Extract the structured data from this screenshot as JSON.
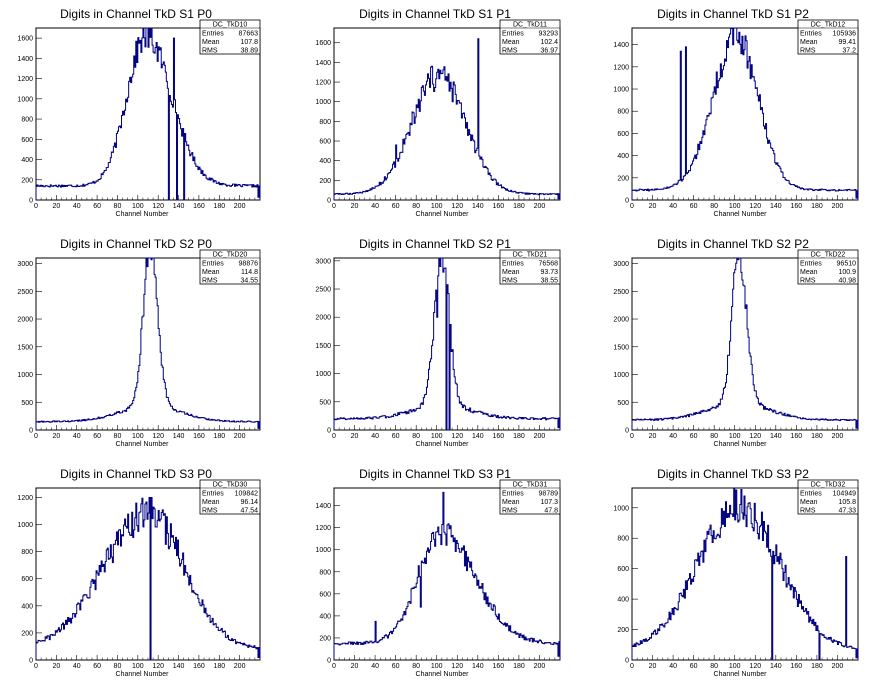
{
  "colors": {
    "line": "#000080",
    "frame": "#000000",
    "background": "#ffffff"
  },
  "chart_data": [
    {
      "type": "histogram",
      "title": "Digits in Channel TkD S1 P0",
      "xlabel": "Channel Number",
      "ylabel": "",
      "xlim": [
        0,
        220
      ],
      "ylim": [
        0,
        1700
      ],
      "xticks": [
        "0",
        "20",
        "40",
        "60",
        "80",
        "100",
        "120",
        "140",
        "160",
        "180",
        "200"
      ],
      "yticks": [
        "0",
        "200",
        "400",
        "600",
        "800",
        "1000",
        "1200",
        "1400",
        "1600"
      ],
      "stats": {
        "name": "DC_TkD10",
        "entries": "87663",
        "mean": "107.8",
        "rms": "38.89"
      },
      "profile": {
        "center": 108,
        "sigma": 22,
        "peak": 1480,
        "baseline": 140,
        "skew": 0.15,
        "noise": 0.09
      },
      "spikes": [
        [
          130,
          0
        ],
        [
          135,
          1600
        ],
        [
          138,
          0
        ],
        [
          145,
          0
        ]
      ]
    },
    {
      "type": "histogram",
      "title": "Digits in Channel TkD S1 P1",
      "xlabel": "Channel Number",
      "ylabel": "",
      "xlim": [
        0,
        220
      ],
      "ylim": [
        0,
        1750
      ],
      "xticks": [
        "0",
        "20",
        "40",
        "60",
        "80",
        "100",
        "120",
        "140",
        "160",
        "180",
        "200"
      ],
      "yticks": [
        "0",
        "200",
        "400",
        "600",
        "800",
        "1000",
        "1200",
        "1400",
        "1600"
      ],
      "stats": {
        "name": "DC_TkD11",
        "entries": "93293",
        "mean": "102.4",
        "rms": "36.97"
      },
      "profile": {
        "center": 102,
        "sigma": 26,
        "peak": 1200,
        "baseline": 60,
        "skew": 0.0,
        "noise": 0.12
      },
      "spikes": [
        [
          60,
          560
        ],
        [
          78,
          780
        ],
        [
          100,
          1300
        ],
        [
          140,
          1640
        ]
      ]
    },
    {
      "type": "histogram",
      "title": "Digits in Channel TkD S1 P2",
      "xlabel": "Channel Number",
      "ylabel": "",
      "xlim": [
        0,
        220
      ],
      "ylim": [
        0,
        1550
      ],
      "xticks": [
        "0",
        "20",
        "40",
        "60",
        "80",
        "100",
        "120",
        "140",
        "160",
        "180",
        "200"
      ],
      "yticks": [
        "0",
        "200",
        "400",
        "600",
        "800",
        "1000",
        "1200",
        "1400"
      ],
      "stats": {
        "name": "DC_TkD12",
        "entries": "105936",
        "mean": "99.41",
        "rms": "37.2"
      },
      "profile": {
        "center": 102,
        "sigma": 22,
        "peak": 1380,
        "baseline": 90,
        "skew": -0.05,
        "noise": 0.1
      },
      "spikes": [
        [
          47,
          1340
        ],
        [
          52,
          1380
        ],
        [
          102,
          1440
        ]
      ]
    },
    {
      "type": "histogram",
      "title": "Digits in Channel TkD S2 P0",
      "xlabel": "Channel Number",
      "ylabel": "",
      "xlim": [
        0,
        220
      ],
      "ylim": [
        0,
        3100
      ],
      "xticks": [
        "0",
        "20",
        "40",
        "60",
        "80",
        "100",
        "120",
        "140",
        "160",
        "180",
        "200"
      ],
      "yticks": [
        "0",
        "500",
        "1000",
        "1500",
        "2000",
        "2500",
        "3000"
      ],
      "stats": {
        "name": "DC_TkD20",
        "entries": "98876",
        "mean": "114.8",
        "rms": "34.55"
      },
      "profile": {
        "center": 112,
        "sigma": 7,
        "peak": 2900,
        "baseline": 150,
        "skew": 0.05,
        "noise": 0.08,
        "wing": 280,
        "wingsigma": 30
      },
      "spikes": []
    },
    {
      "type": "histogram",
      "title": "Digits in Channel TkD S2 P1",
      "xlabel": "Channel Number",
      "ylabel": "",
      "xlim": [
        0,
        220
      ],
      "ylim": [
        0,
        3050
      ],
      "xticks": [
        "0",
        "20",
        "40",
        "60",
        "80",
        "100",
        "120",
        "140",
        "160",
        "180",
        "200"
      ],
      "yticks": [
        "0",
        "500",
        "1000",
        "1500",
        "2000",
        "2500",
        "3000"
      ],
      "stats": {
        "name": "DC_TkD21",
        "entries": "76568",
        "mean": "93.73",
        "rms": "38.55"
      },
      "profile": {
        "center": 105,
        "sigma": 7,
        "peak": 2750,
        "baseline": 200,
        "skew": 0.0,
        "noise": 0.1,
        "wing": 250,
        "wingsigma": 28
      },
      "spikes": [
        [
          100,
          2000
        ],
        [
          103,
          2900
        ],
        [
          106,
          2800
        ],
        [
          109,
          0
        ],
        [
          112,
          0
        ]
      ]
    },
    {
      "type": "histogram",
      "title": "Digits in Channel TkD S2 P2",
      "xlabel": "Channel Number",
      "ylabel": "",
      "xlim": [
        0,
        220
      ],
      "ylim": [
        0,
        3100
      ],
      "xticks": [
        "0",
        "20",
        "40",
        "60",
        "80",
        "100",
        "120",
        "140",
        "160",
        "180",
        "200"
      ],
      "yticks": [
        "0",
        "500",
        "1000",
        "1500",
        "2000",
        "2500",
        "3000"
      ],
      "stats": {
        "name": "DC_TkD22",
        "entries": "96510",
        "mean": "100.9",
        "rms": "40.98"
      },
      "profile": {
        "center": 104,
        "sigma": 7,
        "peak": 2750,
        "baseline": 180,
        "skew": 0.05,
        "noise": 0.08,
        "wing": 300,
        "wingsigma": 30
      },
      "spikes": []
    },
    {
      "type": "histogram",
      "title": "Digits in Channel TkD S3 P0",
      "xlabel": "Channel Number",
      "ylabel": "",
      "xlim": [
        0,
        220
      ],
      "ylim": [
        0,
        1270
      ],
      "xticks": [
        "0",
        "20",
        "40",
        "60",
        "80",
        "100",
        "120",
        "140",
        "160",
        "180",
        "200"
      ],
      "yticks": [
        "0",
        "200",
        "400",
        "600",
        "800",
        "1000",
        "1200"
      ],
      "stats": {
        "name": "DC_TkD30",
        "entries": "109842",
        "mean": "96.14",
        "rms": "47.54"
      },
      "profile": {
        "center": 110,
        "sigma": 40,
        "peak": 1000,
        "baseline": 80,
        "skew": -0.1,
        "noise": 0.12
      },
      "spikes": [
        [
          112,
          0
        ],
        [
          113,
          1200
        ]
      ]
    },
    {
      "type": "histogram",
      "title": "Digits in Channel TkD S3 P1",
      "xlabel": "Channel Number",
      "ylabel": "",
      "xlim": [
        0,
        220
      ],
      "ylim": [
        0,
        1560
      ],
      "xticks": [
        "0",
        "20",
        "40",
        "60",
        "80",
        "100",
        "120",
        "140",
        "160",
        "180",
        "200"
      ],
      "yticks": [
        "0",
        "200",
        "400",
        "600",
        "800",
        "1000",
        "1200",
        "1400"
      ],
      "stats": {
        "name": "DC_TkD31",
        "entries": "98789",
        "mean": "107.3",
        "rms": "47.8"
      },
      "profile": {
        "center": 104,
        "sigma": 28,
        "peak": 1000,
        "baseline": 150,
        "skew": 0.2,
        "noise": 0.1
      },
      "spikes": [
        [
          40,
          350
        ],
        [
          84,
          480
        ],
        [
          106,
          1520
        ]
      ]
    },
    {
      "type": "histogram",
      "title": "Digits in Channel TkD S3 P2",
      "xlabel": "Channel Number",
      "ylabel": "",
      "xlim": [
        0,
        220
      ],
      "ylim": [
        0,
        1130
      ],
      "xticks": [
        "0",
        "20",
        "40",
        "60",
        "80",
        "100",
        "120",
        "140",
        "160",
        "180",
        "200"
      ],
      "yticks": [
        "0",
        "200",
        "400",
        "600",
        "800",
        "1000"
      ],
      "stats": {
        "name": "DC_TkD32",
        "entries": "104949",
        "mean": "105.8",
        "rms": "47.33"
      },
      "profile": {
        "center": 104,
        "sigma": 40,
        "peak": 950,
        "baseline": 60,
        "skew": 0.0,
        "noise": 0.12
      },
      "spikes": [
        [
          136,
          0
        ],
        [
          182,
          0
        ],
        [
          208,
          680
        ]
      ]
    }
  ]
}
